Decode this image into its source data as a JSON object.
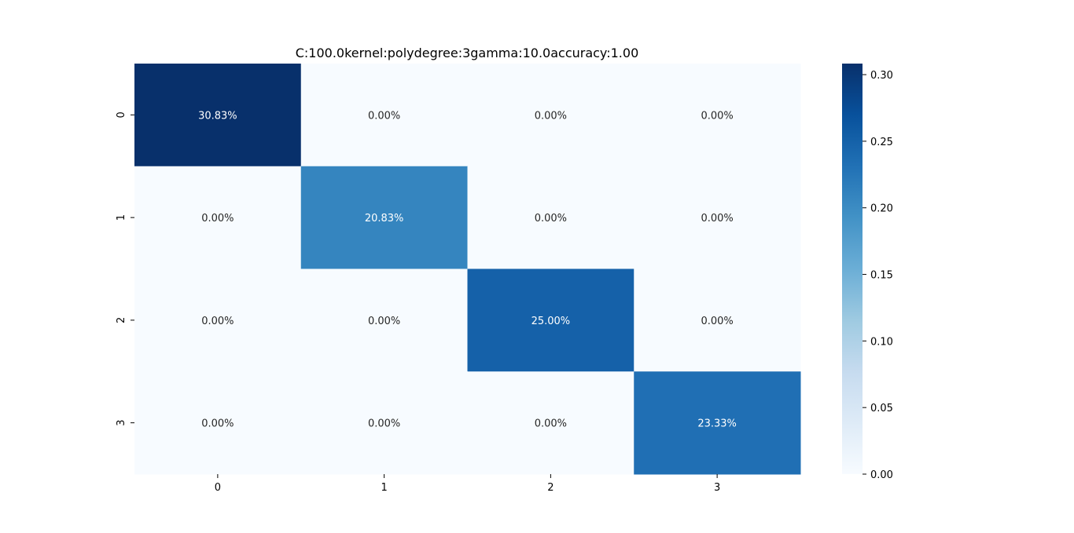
{
  "chart_data": {
    "type": "heatmap",
    "title": "C:100.0kernel:polydegree:3gamma:10.0accuracy:1.00",
    "xlabel": "",
    "ylabel": "",
    "x_tick_labels": [
      "0",
      "1",
      "2",
      "3"
    ],
    "y_tick_labels": [
      "0",
      "1",
      "2",
      "3"
    ],
    "values": [
      [
        0.3083,
        0.0,
        0.0,
        0.0
      ],
      [
        0.0,
        0.2083,
        0.0,
        0.0
      ],
      [
        0.0,
        0.0,
        0.25,
        0.0
      ],
      [
        0.0,
        0.0,
        0.0,
        0.2333
      ]
    ],
    "annotations": [
      [
        "30.83%",
        "0.00%",
        "0.00%",
        "0.00%"
      ],
      [
        "0.00%",
        "20.83%",
        "0.00%",
        "0.00%"
      ],
      [
        "0.00%",
        "0.00%",
        "25.00%",
        "0.00%"
      ],
      [
        "0.00%",
        "0.00%",
        "0.00%",
        "23.33%"
      ]
    ],
    "colormap": "Blues",
    "colorbar": {
      "range": [
        0.0,
        0.3083
      ],
      "ticks": [
        0.0,
        0.05,
        0.1,
        0.15,
        0.2,
        0.25,
        0.3
      ],
      "tick_labels": [
        "0.00",
        "0.05",
        "0.10",
        "0.15",
        "0.20",
        "0.25",
        "0.30"
      ]
    },
    "grid": false,
    "legend": "colorbar-right"
  }
}
